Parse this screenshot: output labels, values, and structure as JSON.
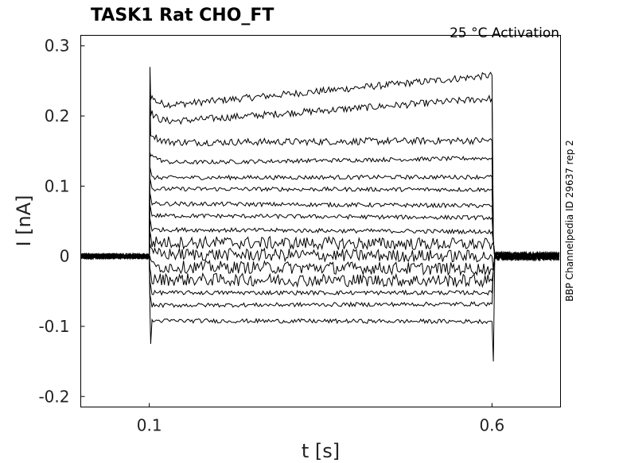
{
  "chart_data": {
    "type": "line",
    "title": "TASK1  Rat  CHO_FT",
    "subtitle": "25 °C  Activation",
    "side_label": "BBP Channelpedia ID 29637 rep 2",
    "xlabel": "t [s]",
    "ylabel": "I [nA]",
    "xlim": [
      0.0,
      0.7
    ],
    "ylim": [
      -0.215,
      0.315
    ],
    "xticks": [
      0.1,
      0.6
    ],
    "xtick_labels": [
      "0.1",
      "0.6"
    ],
    "yticks": [
      0.3,
      0.2,
      0.1,
      0,
      -0.1,
      -0.2
    ],
    "ytick_labels": [
      "0.3",
      "0.2",
      "0.1",
      "0",
      "-0.1",
      "-0.2"
    ],
    "grid": false,
    "step_on": 0.1,
    "step_off": 0.6,
    "baseline_current": 0.0,
    "series": [
      {
        "steady_values": [
          0.213,
          0.258
        ]
      },
      {
        "steady_values": [
          0.19,
          0.225
        ]
      },
      {
        "steady_values": [
          0.162,
          0.165
        ]
      },
      {
        "steady_values": [
          0.133,
          0.14
        ]
      },
      {
        "steady_values": [
          0.112,
          0.113
        ]
      },
      {
        "steady_values": [
          0.096,
          0.095
        ]
      },
      {
        "steady_values": [
          0.075,
          0.072
        ]
      },
      {
        "steady_values": [
          0.058,
          0.055
        ]
      },
      {
        "steady_values": [
          0.038,
          0.035
        ]
      },
      {
        "steady_values": [
          0.02,
          0.017
        ]
      },
      {
        "steady_values": [
          0.003,
          0.0
        ]
      },
      {
        "steady_values": [
          -0.015,
          -0.018
        ]
      },
      {
        "steady_values": [
          -0.033,
          -0.035
        ]
      },
      {
        "steady_values": [
          -0.052,
          -0.052
        ]
      },
      {
        "steady_values": [
          -0.07,
          -0.068
        ]
      },
      {
        "steady_values": [
          -0.092,
          -0.093
        ]
      }
    ]
  }
}
